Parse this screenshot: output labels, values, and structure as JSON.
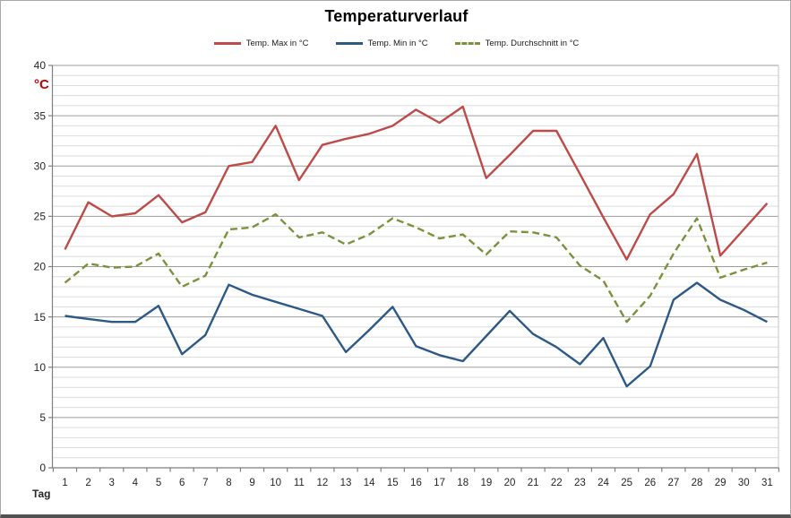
{
  "chart": {
    "title": "Temperaturverlauf",
    "y_axis_unit_label": "°C",
    "x_axis_label": "Tag"
  },
  "colors": {
    "max": "#BE4B48",
    "min": "#2D5986",
    "avg": "#7A923C",
    "axis": "#7F7F7F",
    "grid_major": "#9D9D9D",
    "grid_minor": "#DCDCDC",
    "plot_right_border": "#C6C6C6",
    "unit_label": "#C00000",
    "tick_label": "#262626"
  },
  "chart_data": {
    "type": "line",
    "title": "Temperaturverlauf",
    "xlabel": "Tag",
    "ylabel": "°C",
    "x": [
      1,
      2,
      3,
      4,
      5,
      6,
      7,
      8,
      9,
      10,
      11,
      12,
      13,
      14,
      15,
      16,
      17,
      18,
      19,
      20,
      21,
      22,
      23,
      24,
      25,
      26,
      27,
      28,
      29,
      30,
      31
    ],
    "y_ticks": [
      0,
      5,
      10,
      15,
      20,
      25,
      30,
      35,
      40
    ],
    "ylim": [
      0,
      40
    ],
    "y_minor_step": 1,
    "grid": true,
    "legend_position": "top",
    "series": [
      {
        "name": "Temp. Max in °C",
        "style": "solid",
        "color": "#BE4B48",
        "values": [
          21.7,
          26.4,
          25.0,
          25.3,
          27.1,
          24.4,
          25.4,
          30.0,
          30.4,
          34.0,
          28.6,
          32.1,
          32.7,
          33.2,
          34.0,
          35.6,
          34.3,
          35.9,
          28.8,
          31.1,
          33.5,
          33.5,
          29.2,
          24.9,
          20.7,
          25.2,
          27.2,
          31.2,
          21.1,
          23.7,
          26.3
        ]
      },
      {
        "name": "Temp. Min in °C",
        "style": "solid",
        "color": "#2D5986",
        "values": [
          15.1,
          14.8,
          14.5,
          14.5,
          16.1,
          11.3,
          13.2,
          18.2,
          17.2,
          16.5,
          15.8,
          15.1,
          11.5,
          13.7,
          16.0,
          12.1,
          11.2,
          10.6,
          13.1,
          15.6,
          13.3,
          12.0,
          10.3,
          12.9,
          8.1,
          10.1,
          16.7,
          18.4,
          16.7,
          15.7,
          14.5
        ]
      },
      {
        "name": "Temp. Durchschnitt in °C",
        "style": "dashed",
        "color": "#7A923C",
        "values": [
          18.4,
          20.3,
          19.9,
          20.0,
          21.3,
          18.0,
          19.1,
          23.7,
          23.9,
          25.2,
          22.9,
          23.4,
          22.2,
          23.2,
          24.8,
          23.9,
          22.8,
          23.2,
          21.2,
          23.5,
          23.4,
          22.9,
          20.1,
          18.6,
          14.5,
          17.1,
          21.3,
          24.8,
          18.9,
          19.7,
          20.4
        ]
      }
    ]
  }
}
